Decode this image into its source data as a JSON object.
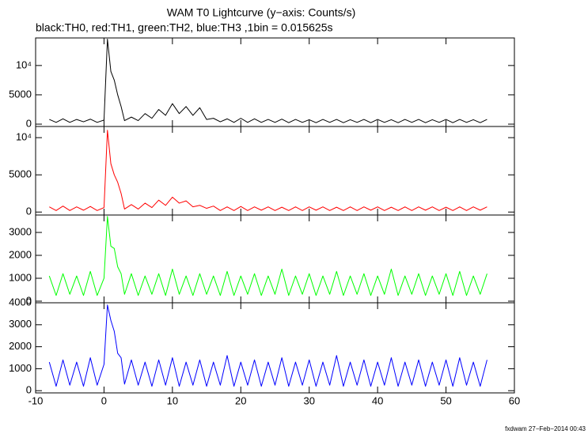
{
  "header": {
    "title": "WAM T0 Lightcurve (y−axis: Counts/s)",
    "subtitle": "black:TH0, red:TH1, green:TH2, blue:TH3 ,1bin = 0.015625s"
  },
  "footer": "fxdwam 27−Feb−2014 00:43",
  "chart_data": [
    {
      "type": "line",
      "x": [
        -8,
        -7,
        -6,
        -5,
        -4,
        -3,
        -2,
        -1,
        0,
        0.5,
        1,
        1.5,
        2,
        2.5,
        3,
        4,
        5,
        6,
        7,
        8,
        9,
        10,
        11,
        12,
        13,
        14,
        15,
        16,
        17,
        18,
        19,
        20,
        21,
        22,
        23,
        24,
        25,
        26,
        27,
        28,
        29,
        30,
        31,
        32,
        33,
        34,
        35,
        36,
        37,
        38,
        39,
        40,
        41,
        42,
        43,
        44,
        45,
        46,
        47,
        48,
        49,
        50,
        51,
        52,
        53,
        54,
        55,
        56
      ],
      "series": [
        {
          "color": "#000000",
          "values": [
            800,
            300,
            900,
            300,
            800,
            400,
            850,
            300,
            700,
            14500,
            9000,
            7500,
            5000,
            3000,
            600,
            1200,
            600,
            1800,
            1000,
            2500,
            1500,
            3500,
            1800,
            3000,
            1500,
            2800,
            800,
            1000,
            400,
            900,
            300,
            1000,
            300,
            900,
            300,
            800,
            300,
            850,
            250,
            800,
            300,
            750,
            250,
            800,
            300,
            800,
            250,
            750,
            300,
            800,
            250,
            800,
            300,
            750,
            250,
            800,
            300,
            800,
            250,
            750,
            300,
            800,
            250,
            800,
            300,
            750,
            250,
            800
          ]
        }
      ],
      "xlim": [
        -10,
        60
      ],
      "xticks": [
        -10,
        0,
        10,
        20,
        30,
        40,
        50,
        60
      ],
      "ylim": [
        -400,
        14700
      ],
      "yticks": [
        0,
        5000,
        {
          "value": 10000,
          "label": "10⁴"
        }
      ]
    },
    {
      "type": "line",
      "x": [
        -8,
        -7,
        -6,
        -5,
        -4,
        -3,
        -2,
        -1,
        0,
        0.5,
        1,
        1.5,
        2,
        2.5,
        3,
        4,
        5,
        6,
        7,
        8,
        9,
        10,
        11,
        12,
        13,
        14,
        15,
        16,
        17,
        18,
        19,
        20,
        21,
        22,
        23,
        24,
        25,
        26,
        27,
        28,
        29,
        30,
        31,
        32,
        33,
        34,
        35,
        36,
        37,
        38,
        39,
        40,
        41,
        42,
        43,
        44,
        45,
        46,
        47,
        48,
        49,
        50,
        51,
        52,
        53,
        54,
        55,
        56
      ],
      "series": [
        {
          "color": "#ff0000",
          "values": [
            700,
            200,
            800,
            200,
            700,
            250,
            750,
            200,
            600,
            11000,
            6500,
            5000,
            4000,
            2500,
            400,
            1000,
            400,
            1200,
            600,
            1600,
            900,
            2000,
            1200,
            1500,
            700,
            900,
            500,
            800,
            200,
            700,
            200,
            750,
            200,
            700,
            250,
            700,
            200,
            650,
            200,
            700,
            200,
            700,
            250,
            700,
            200,
            650,
            200,
            700,
            200,
            700,
            250,
            700,
            200,
            650,
            200,
            700,
            200,
            700,
            250,
            700,
            200,
            650,
            200,
            700,
            200,
            700,
            250,
            700
          ]
        }
      ],
      "xlim": [
        -10,
        60
      ],
      "xticks": [
        -10,
        0,
        10,
        20,
        30,
        40,
        50,
        60
      ],
      "ylim": [
        -400,
        11500
      ],
      "yticks": [
        0,
        5000,
        {
          "value": 10000,
          "label": "10⁴"
        }
      ]
    },
    {
      "type": "line",
      "x": [
        -8,
        -7,
        -6,
        -5,
        -4,
        -3,
        -2,
        -1,
        0,
        0.5,
        1,
        1.5,
        2,
        2.5,
        3,
        4,
        5,
        6,
        7,
        8,
        9,
        10,
        11,
        12,
        13,
        14,
        15,
        16,
        17,
        18,
        19,
        20,
        21,
        22,
        23,
        24,
        25,
        26,
        27,
        28,
        29,
        30,
        31,
        32,
        33,
        34,
        35,
        36,
        37,
        38,
        39,
        40,
        41,
        42,
        43,
        44,
        45,
        46,
        47,
        48,
        49,
        50,
        51,
        52,
        53,
        54,
        55,
        56
      ],
      "series": [
        {
          "color": "#00ff00",
          "values": [
            1100,
            250,
            1200,
            300,
            1100,
            250,
            1300,
            250,
            1000,
            3700,
            2400,
            2300,
            1500,
            1200,
            300,
            1200,
            250,
            1100,
            300,
            1200,
            250,
            1400,
            300,
            1100,
            250,
            1200,
            300,
            1100,
            250,
            1300,
            250,
            1100,
            300,
            1200,
            250,
            1100,
            300,
            1400,
            250,
            1100,
            300,
            1200,
            250,
            1100,
            300,
            1300,
            250,
            1100,
            300,
            1200,
            250,
            1100,
            300,
            1400,
            250,
            1100,
            300,
            1200,
            250,
            1100,
            300,
            1200,
            250,
            1300,
            250,
            1100,
            300,
            1200
          ]
        }
      ],
      "xlim": [
        -10,
        60
      ],
      "xticks": [
        -10,
        0,
        10,
        20,
        30,
        40,
        50,
        60
      ],
      "ylim": [
        -70,
        3760
      ],
      "yticks": [
        0,
        1000,
        2000,
        3000
      ]
    },
    {
      "type": "line",
      "x": [
        -8,
        -7,
        -6,
        -5,
        -4,
        -3,
        -2,
        -1,
        0,
        0.5,
        1,
        1.5,
        2,
        2.5,
        3,
        4,
        5,
        6,
        7,
        8,
        9,
        10,
        11,
        12,
        13,
        14,
        15,
        16,
        17,
        18,
        19,
        20,
        21,
        22,
        23,
        24,
        25,
        26,
        27,
        28,
        29,
        30,
        31,
        32,
        33,
        34,
        35,
        36,
        37,
        38,
        39,
        40,
        41,
        42,
        43,
        44,
        45,
        46,
        47,
        48,
        49,
        50,
        51,
        52,
        53,
        54,
        55,
        56
      ],
      "series": [
        {
          "color": "#0000ff",
          "values": [
            1300,
            200,
            1400,
            250,
            1300,
            200,
            1500,
            250,
            1200,
            3900,
            3200,
            2700,
            1700,
            1500,
            300,
            1400,
            250,
            1300,
            200,
            1400,
            250,
            1500,
            200,
            1300,
            250,
            1400,
            200,
            1300,
            250,
            1600,
            200,
            1300,
            250,
            1400,
            200,
            1300,
            250,
            1500,
            200,
            1300,
            250,
            1400,
            200,
            1300,
            250,
            1600,
            200,
            1300,
            250,
            1400,
            200,
            1300,
            250,
            1500,
            200,
            1300,
            250,
            1400,
            200,
            1300,
            250,
            1400,
            200,
            1500,
            250,
            1300,
            200,
            1400
          ]
        }
      ],
      "xlim": [
        -10,
        60
      ],
      "xticks": [
        -10,
        0,
        10,
        20,
        30,
        40,
        50,
        60
      ],
      "ylim": [
        -100,
        4000
      ],
      "yticks": [
        0,
        1000,
        2000,
        3000,
        4000
      ]
    }
  ]
}
